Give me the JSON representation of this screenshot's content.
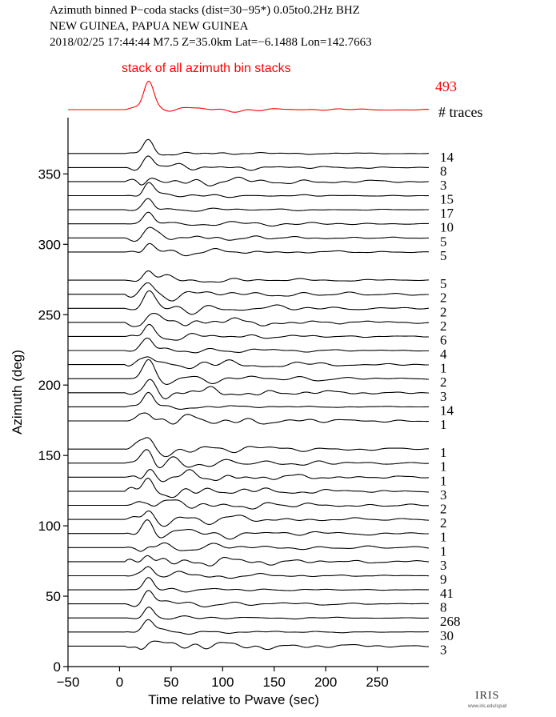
{
  "header": {
    "line1": "Azimuth binned P−coda stacks (dist=30−95*)  0.05to0.2Hz  BHZ",
    "line2": "NEW GUINEA, PAPUA NEW GUINEA",
    "line3": "2018/02/25  17:44:44  M7.5  Z=35.0km Lat=−6.1488 Lon=142.7663"
  },
  "overall_stack": {
    "label": "stack of all azimuth bin stacks",
    "count": "493",
    "color": "#ff0000",
    "count_header": "# traces"
  },
  "logo": {
    "text": "IRIS",
    "url_text": "www.iris.edu/spud"
  },
  "chart_data": {
    "type": "line",
    "title": "",
    "xlabel": "Time relative to Pwave (sec)",
    "ylabel": "Azimuth (deg)",
    "xlim": [
      -50,
      300
    ],
    "ylim": [
      0,
      390
    ],
    "xticks": [
      "−50",
      "0",
      "50",
      "100",
      "150",
      "200",
      "250"
    ],
    "xtick_values": [
      -50,
      0,
      50,
      100,
      150,
      200,
      250
    ],
    "yticks": [
      "0",
      "50",
      "100",
      "150",
      "200",
      "250",
      "300",
      "350"
    ],
    "ytick_values": [
      0,
      50,
      100,
      150,
      200,
      250,
      300,
      350
    ],
    "series": [
      {
        "azimuth": 360,
        "count": "14"
      },
      {
        "azimuth": 350,
        "count": "8"
      },
      {
        "azimuth": 340,
        "count": "3"
      },
      {
        "azimuth": 330,
        "count": "15"
      },
      {
        "azimuth": 320,
        "count": "17"
      },
      {
        "azimuth": 310,
        "count": "10"
      },
      {
        "azimuth": 300,
        "count": "5"
      },
      {
        "azimuth": 290,
        "count": "5"
      },
      {
        "azimuth": 270,
        "count": "5"
      },
      {
        "azimuth": 260,
        "count": "2"
      },
      {
        "azimuth": 250,
        "count": "2"
      },
      {
        "azimuth": 240,
        "count": "2"
      },
      {
        "azimuth": 230,
        "count": "6"
      },
      {
        "azimuth": 220,
        "count": "4"
      },
      {
        "azimuth": 210,
        "count": "1"
      },
      {
        "azimuth": 200,
        "count": "2"
      },
      {
        "azimuth": 190,
        "count": "3"
      },
      {
        "azimuth": 180,
        "count": "14"
      },
      {
        "azimuth": 170,
        "count": "1"
      },
      {
        "azimuth": 150,
        "count": "1"
      },
      {
        "azimuth": 140,
        "count": "1"
      },
      {
        "azimuth": 130,
        "count": "1"
      },
      {
        "azimuth": 120,
        "count": "3"
      },
      {
        "azimuth": 110,
        "count": "2"
      },
      {
        "azimuth": 100,
        "count": "2"
      },
      {
        "azimuth": 90,
        "count": "1"
      },
      {
        "azimuth": 80,
        "count": "1"
      },
      {
        "azimuth": 70,
        "count": "3"
      },
      {
        "azimuth": 60,
        "count": "9"
      },
      {
        "azimuth": 50,
        "count": "41"
      },
      {
        "azimuth": 40,
        "count": "8"
      },
      {
        "azimuth": 30,
        "count": "268"
      },
      {
        "azimuth": 20,
        "count": "30"
      },
      {
        "azimuth": 10,
        "count": "3"
      }
    ]
  }
}
